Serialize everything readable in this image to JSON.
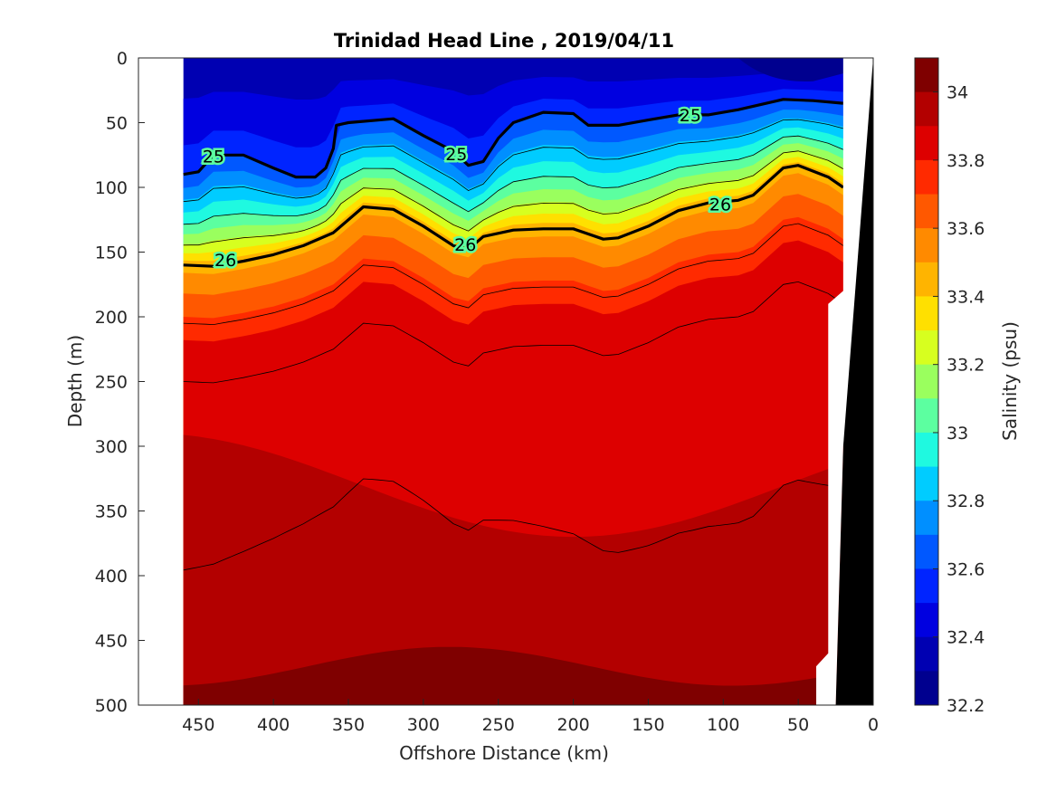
{
  "chart_data": {
    "type": "heatmap",
    "title": "Trinidad Head Line , 2019/04/11",
    "xlabel": "Offshore Distance (km)",
    "ylabel": "Depth (m)",
    "colorbar_label": "Salinity (psu)",
    "xlim": [
      490,
      0
    ],
    "ylim": [
      500,
      0
    ],
    "x_ticks": [
      "450",
      "400",
      "350",
      "300",
      "250",
      "200",
      "150",
      "100",
      "50",
      "0"
    ],
    "y_ticks": [
      "0",
      "50",
      "100",
      "150",
      "200",
      "250",
      "300",
      "350",
      "400",
      "450",
      "500"
    ],
    "colorbar_ticks": [
      "34",
      "33.8",
      "33.6",
      "33.4",
      "33.2",
      "33",
      "32.8",
      "32.6",
      "32.4",
      "32.2"
    ],
    "colorbar_range": [
      32.2,
      34.1
    ],
    "colorbar_levels": [
      "#7f0000",
      "#b30000",
      "#dd0000",
      "#ff2a00",
      "#ff5800",
      "#ff8a00",
      "#ffb400",
      "#ffe000",
      "#d7ff1f",
      "#9aff5e",
      "#5cffa0",
      "#1ff9e0",
      "#00ccff",
      "#008fff",
      "#0058ff",
      "#0024ff",
      "#0000e0",
      "#0000b2",
      "#00008f"
    ],
    "data_x_range": [
      460,
      20
    ],
    "data_depth_range": [
      0,
      500
    ],
    "bathymetry_color": "#000000",
    "isopycnals": [
      {
        "label": "25",
        "points": [
          [
            460,
            90
          ],
          [
            450,
            88
          ],
          [
            440,
            75
          ],
          [
            420,
            75
          ],
          [
            400,
            85
          ],
          [
            385,
            92
          ],
          [
            372,
            92
          ],
          [
            365,
            85
          ],
          [
            360,
            70
          ],
          [
            358,
            52
          ],
          [
            350,
            50
          ],
          [
            320,
            47
          ],
          [
            300,
            60
          ],
          [
            280,
            72
          ],
          [
            270,
            83
          ],
          [
            260,
            80
          ],
          [
            250,
            62
          ],
          [
            240,
            50
          ],
          [
            220,
            42
          ],
          [
            200,
            43
          ],
          [
            190,
            52
          ],
          [
            170,
            52
          ],
          [
            150,
            48
          ],
          [
            130,
            44
          ],
          [
            110,
            44
          ],
          [
            90,
            40
          ],
          [
            60,
            32
          ],
          [
            40,
            33
          ],
          [
            20,
            35
          ]
        ]
      },
      {
        "label": "26",
        "points": [
          [
            460,
            160
          ],
          [
            440,
            161
          ],
          [
            420,
            157
          ],
          [
            400,
            152
          ],
          [
            380,
            145
          ],
          [
            360,
            135
          ],
          [
            340,
            115
          ],
          [
            320,
            117
          ],
          [
            300,
            130
          ],
          [
            280,
            145
          ],
          [
            270,
            148
          ],
          [
            260,
            138
          ],
          [
            240,
            133
          ],
          [
            220,
            132
          ],
          [
            200,
            132
          ],
          [
            180,
            140
          ],
          [
            170,
            139
          ],
          [
            150,
            130
          ],
          [
            130,
            118
          ],
          [
            110,
            112
          ],
          [
            90,
            110
          ],
          [
            80,
            106
          ],
          [
            60,
            85
          ],
          [
            50,
            83
          ],
          [
            30,
            92
          ],
          [
            20,
            100
          ]
        ]
      }
    ],
    "contour_labels": [
      {
        "text": "25",
        "x": 440,
        "depth": 76
      },
      {
        "text": "25",
        "x": 278,
        "depth": 74
      },
      {
        "text": "25",
        "x": 122,
        "depth": 44
      },
      {
        "text": "26",
        "x": 432,
        "depth": 156
      },
      {
        "text": "26",
        "x": 272,
        "depth": 144
      },
      {
        "text": "26",
        "x": 102,
        "depth": 113
      }
    ]
  }
}
